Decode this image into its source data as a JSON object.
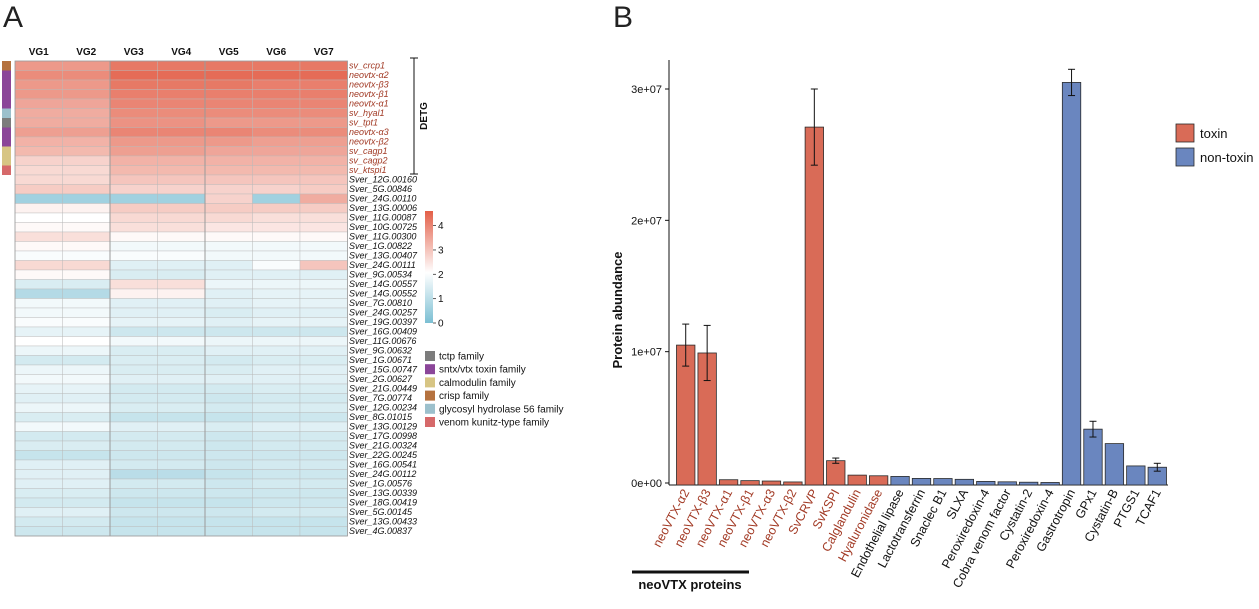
{
  "panels": {
    "a_label": "A",
    "b_label": "B"
  },
  "heatmap": {
    "type": "heatmap",
    "columns": [
      "VG1",
      "VG2",
      "VG3",
      "VG4",
      "VG5",
      "VG6",
      "VG7"
    ],
    "rows": [
      {
        "label": "sv_crcp1",
        "toxin": true,
        "family": "crisp",
        "values": [
          3.7,
          3.7,
          4.2,
          4.2,
          4.2,
          4.2,
          4.2
        ]
      },
      {
        "label": "neovtx-α2",
        "toxin": true,
        "family": "sntx",
        "values": [
          3.9,
          3.9,
          4.4,
          4.4,
          4.4,
          4.4,
          4.4
        ]
      },
      {
        "label": "neovtx-β3",
        "toxin": true,
        "family": "sntx",
        "values": [
          3.7,
          3.7,
          4.2,
          4.2,
          4.2,
          4.1,
          4.1
        ]
      },
      {
        "label": "neovtx-β1",
        "toxin": true,
        "family": "sntx",
        "values": [
          3.7,
          3.7,
          4.1,
          4.1,
          4.1,
          4.1,
          4.1
        ]
      },
      {
        "label": "neovtx-α1",
        "toxin": true,
        "family": "sntx",
        "values": [
          3.5,
          3.5,
          4.0,
          4.0,
          4.0,
          4.0,
          4.0
        ]
      },
      {
        "label": "sv_hyal1",
        "toxin": true,
        "family": "glyco",
        "values": [
          3.4,
          3.4,
          3.9,
          3.9,
          3.9,
          3.9,
          3.9
        ]
      },
      {
        "label": "sv_tpt1",
        "toxin": true,
        "family": "tctp",
        "values": [
          3.4,
          3.4,
          3.8,
          3.8,
          3.7,
          3.7,
          3.7
        ]
      },
      {
        "label": "neovtx-α3",
        "toxin": true,
        "family": "sntx",
        "values": [
          3.6,
          3.6,
          4.0,
          4.0,
          4.0,
          3.9,
          3.9
        ]
      },
      {
        "label": "neovtx-β2",
        "toxin": true,
        "family": "sntx",
        "values": [
          3.3,
          3.3,
          3.7,
          3.7,
          3.7,
          3.6,
          3.6
        ]
      },
      {
        "label": "sv_cagp1",
        "toxin": true,
        "family": "calmodulin",
        "values": [
          3.2,
          3.2,
          3.6,
          3.6,
          3.5,
          3.5,
          3.5
        ]
      },
      {
        "label": "sv_cagp2",
        "toxin": true,
        "family": "calmodulin",
        "values": [
          2.8,
          2.8,
          3.3,
          3.3,
          3.3,
          3.3,
          3.3
        ]
      },
      {
        "label": "sv_ktspi1",
        "toxin": true,
        "family": "kunitz",
        "values": [
          2.7,
          2.7,
          3.2,
          3.2,
          3.2,
          3.2,
          3.2
        ]
      },
      {
        "label": "Sver_12G.00160",
        "values": [
          2.7,
          2.7,
          3.0,
          3.0,
          3.0,
          3.0,
          3.0
        ]
      },
      {
        "label": "Sver_5G.00846",
        "values": [
          2.9,
          2.9,
          2.8,
          2.8,
          2.8,
          2.8,
          2.9
        ]
      },
      {
        "label": "Sver_24G.00110",
        "values": [
          0.6,
          0.6,
          0.6,
          0.6,
          2.8,
          0.6,
          3.4
        ]
      },
      {
        "label": "Sver_13G.00006",
        "values": [
          2.3,
          2.3,
          2.9,
          2.9,
          2.9,
          2.9,
          2.9
        ]
      },
      {
        "label": "Sver_11G.00087",
        "values": [
          2.1,
          2.1,
          2.7,
          2.7,
          2.7,
          2.6,
          2.6
        ]
      },
      {
        "label": "Sver_10G.00725",
        "values": [
          2.2,
          2.2,
          2.6,
          2.6,
          2.5,
          2.5,
          2.5
        ]
      },
      {
        "label": "Sver_11G.00300",
        "values": [
          2.6,
          2.6,
          2.2,
          2.2,
          2.2,
          2.2,
          2.2
        ]
      },
      {
        "label": "Sver_1G.00822",
        "values": [
          2.2,
          2.2,
          1.9,
          1.9,
          1.9,
          1.9,
          1.9
        ]
      },
      {
        "label": "Sver_13G.00407",
        "values": [
          2.0,
          2.0,
          2.0,
          2.0,
          1.9,
          1.9,
          1.9
        ]
      },
      {
        "label": "Sver_24G.00111",
        "values": [
          2.7,
          2.7,
          1.6,
          1.6,
          1.6,
          2.0,
          3.0
        ]
      },
      {
        "label": "Sver_9G.00534",
        "values": [
          2.2,
          2.2,
          1.5,
          1.5,
          1.6,
          1.6,
          1.6
        ]
      },
      {
        "label": "Sver_14G.00557",
        "values": [
          1.5,
          1.5,
          2.6,
          2.6,
          1.8,
          1.8,
          1.8
        ]
      },
      {
        "label": "Sver_14G.00552",
        "values": [
          0.9,
          0.9,
          2.3,
          2.3,
          1.6,
          1.7,
          1.7
        ]
      },
      {
        "label": "Sver_7G.00810",
        "values": [
          1.9,
          1.9,
          1.6,
          1.6,
          1.6,
          1.7,
          1.7
        ]
      },
      {
        "label": "Sver_24G.00257",
        "values": [
          1.9,
          1.9,
          1.6,
          1.6,
          1.5,
          1.6,
          1.6
        ]
      },
      {
        "label": "Sver_19G.00397",
        "values": [
          2.0,
          2.0,
          1.7,
          1.7,
          1.6,
          1.7,
          1.7
        ]
      },
      {
        "label": "Sver_16G.00409",
        "values": [
          1.7,
          1.7,
          1.3,
          1.3,
          1.3,
          1.3,
          1.3
        ]
      },
      {
        "label": "Sver_11G.00676",
        "values": [
          2.1,
          2.1,
          1.9,
          1.9,
          1.8,
          1.8,
          1.8
        ]
      },
      {
        "label": "Sver_9G.00632",
        "values": [
          1.8,
          1.8,
          1.5,
          1.5,
          1.6,
          1.6,
          1.6
        ]
      },
      {
        "label": "Sver_1G.00671",
        "values": [
          1.4,
          1.4,
          1.5,
          1.5,
          1.4,
          1.5,
          1.5
        ]
      },
      {
        "label": "Sver_15G.00747",
        "values": [
          1.8,
          1.8,
          1.5,
          1.5,
          1.5,
          1.6,
          1.6
        ]
      },
      {
        "label": "Sver_2G.00627",
        "values": [
          1.9,
          1.9,
          1.6,
          1.6,
          1.6,
          1.6,
          1.6
        ]
      },
      {
        "label": "Sver_21G.00449",
        "values": [
          1.7,
          1.7,
          1.4,
          1.4,
          1.4,
          1.5,
          1.5
        ]
      },
      {
        "label": "Sver_7G.00774",
        "values": [
          1.6,
          1.6,
          1.4,
          1.4,
          1.3,
          1.4,
          1.4
        ]
      },
      {
        "label": "Sver_12G.00234",
        "values": [
          1.8,
          1.8,
          1.5,
          1.5,
          1.4,
          1.5,
          1.5
        ]
      },
      {
        "label": "Sver_8G.01015",
        "values": [
          1.5,
          1.5,
          1.2,
          1.2,
          1.2,
          1.3,
          1.3
        ]
      },
      {
        "label": "Sver_13G.00129",
        "values": [
          1.9,
          1.9,
          1.6,
          1.6,
          1.5,
          1.6,
          1.6
        ]
      },
      {
        "label": "Sver_17G.00998",
        "values": [
          1.4,
          1.4,
          1.4,
          1.4,
          1.3,
          1.4,
          1.4
        ]
      },
      {
        "label": "Sver_21G.00324",
        "values": [
          1.5,
          1.5,
          1.4,
          1.4,
          1.3,
          1.4,
          1.4
        ]
      },
      {
        "label": "Sver_22G.00245",
        "values": [
          1.2,
          1.2,
          1.3,
          1.3,
          1.3,
          1.3,
          1.3
        ]
      },
      {
        "label": "Sver_16G.00541",
        "values": [
          1.6,
          1.6,
          1.4,
          1.4,
          1.3,
          1.4,
          1.4
        ]
      },
      {
        "label": "Sver_24G.00112",
        "values": [
          1.6,
          1.6,
          1.0,
          1.0,
          1.2,
          1.3,
          1.3
        ]
      },
      {
        "label": "Sver_1G.00576",
        "values": [
          1.6,
          1.6,
          1.4,
          1.4,
          1.3,
          1.4,
          1.4
        ]
      },
      {
        "label": "Sver_13G.00339",
        "values": [
          1.5,
          1.5,
          1.3,
          1.3,
          1.3,
          1.3,
          1.3
        ]
      },
      {
        "label": "Sver_18G.00419",
        "values": [
          1.4,
          1.4,
          1.2,
          1.2,
          1.2,
          1.3,
          1.3
        ]
      },
      {
        "label": "Sver_5G.00145",
        "values": [
          1.6,
          1.6,
          1.3,
          1.3,
          1.3,
          1.4,
          1.4
        ]
      },
      {
        "label": "Sver_13G.00433",
        "values": [
          1.4,
          1.4,
          1.2,
          1.2,
          1.2,
          1.2,
          1.2
        ]
      },
      {
        "label": "Sver_4G.00837",
        "values": [
          1.3,
          1.3,
          1.2,
          1.2,
          1.2,
          1.2,
          1.2
        ]
      }
    ],
    "bracket_label": "DETG",
    "colorbar": {
      "ticks": [
        "0",
        "1",
        "2",
        "3",
        "4"
      ],
      "range": [
        0,
        4.6
      ],
      "colors": [
        "#7bbfd3",
        "#ffffff",
        "#e35f48"
      ]
    },
    "family_legend": [
      {
        "key": "tctp",
        "label": "tctp family",
        "color": "#7c7c7c"
      },
      {
        "key": "sntx",
        "label": "sntx/vtx toxin family",
        "color": "#8b4699"
      },
      {
        "key": "calmodulin",
        "label": "calmodulin family",
        "color": "#d7c584"
      },
      {
        "key": "crisp",
        "label": "crisp family",
        "color": "#b5723f"
      },
      {
        "key": "glyco",
        "label": "glycosyl hydrolase 56 family",
        "color": "#9cc0cc"
      },
      {
        "key": "kunitz",
        "label": "venom kunitz-type family",
        "color": "#d6696a"
      }
    ],
    "toxin_label_color": "#a23a25",
    "gene_label_color": "#111111"
  },
  "chart_data": {
    "type": "bar",
    "categories": [
      "neoVTX-α2",
      "neoVTX-β3",
      "neoVTX-α1",
      "neoVTX-β1",
      "neoVTX-α3",
      "neoVTX-β2",
      "SvCRVP",
      "SvKSPI",
      "Calglandulin",
      "Hyaluronidase",
      "Endothelial lipase",
      "Lactotransferrin",
      "Snaclec B1",
      "SLXA",
      "Peroxiredoxin-4",
      "Cobra venom factor",
      "Cystatin-2",
      "Peroxiredoxin-4",
      "Gastrotropin",
      "GPx1",
      "Cystatin-B",
      "PTGS1",
      "TCAF1"
    ],
    "values": [
      10500000,
      9900000,
      250000,
      180000,
      150000,
      80000,
      27100000,
      1700000,
      600000,
      550000,
      500000,
      350000,
      340000,
      280000,
      120000,
      90000,
      60000,
      40000,
      30500000,
      4100000,
      3000000,
      1300000,
      1200000
    ],
    "errors": [
      1600000,
      2100000,
      30000,
      40000,
      30000,
      10000,
      2900000,
      200000,
      80000,
      80000,
      60000,
      100000,
      90000,
      80000,
      20000,
      10000,
      10000,
      10000,
      1000000,
      600000,
      100000,
      50000,
      300000
    ],
    "groups": [
      "toxin",
      "toxin",
      "toxin",
      "toxin",
      "toxin",
      "toxin",
      "toxin",
      "toxin",
      "toxin",
      "toxin",
      "non-toxin",
      "non-toxin",
      "non-toxin",
      "non-toxin",
      "non-toxin",
      "non-toxin",
      "non-toxin",
      "non-toxin",
      "non-toxin",
      "non-toxin",
      "non-toxin",
      "non-toxin",
      "non-toxin"
    ],
    "ylabel": "Protein abundance",
    "yticks": [
      "0e+00",
      "1e+07",
      "2e+07",
      "3e+07"
    ],
    "ytick_values": [
      0,
      10000000,
      20000000,
      30000000
    ],
    "ylim": [
      0,
      32000000
    ],
    "legend": [
      {
        "name": "toxin",
        "color": "#d96b57"
      },
      {
        "name": "non-toxin",
        "color": "#6a86bf"
      }
    ],
    "legend_position": "right",
    "group_label": "neoVTX proteins",
    "toxin_tick_color": "#a23a25",
    "other_tick_color": "#111111"
  }
}
